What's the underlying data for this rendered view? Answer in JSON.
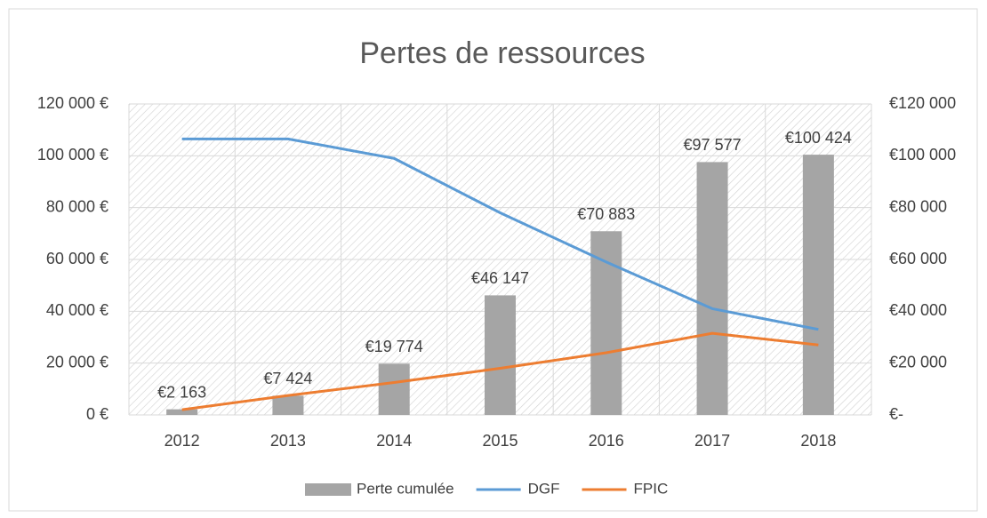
{
  "chart_data": {
    "type": "combo",
    "title": "Pertes de ressources",
    "categories": [
      "2012",
      "2013",
      "2014",
      "2015",
      "2016",
      "2017",
      "2018"
    ],
    "series": [
      {
        "name": "Perte cumulée",
        "type": "bar",
        "axis": "y2",
        "color": "#a5a5a5",
        "values": [
          2163,
          7424,
          19774,
          46147,
          70883,
          97577,
          100424
        ],
        "value_labels": [
          "€2 163",
          "€7 424",
          "€19 774",
          "€46 147",
          "€70 883",
          "€97 577",
          "€100 424"
        ]
      },
      {
        "name": "DGF",
        "type": "line",
        "color": "#5b9bd5",
        "values": [
          106500,
          106500,
          99000,
          78000,
          59000,
          41000,
          33000
        ]
      },
      {
        "name": "FPIC",
        "type": "line",
        "color": "#ed7d31",
        "values": [
          2000,
          7500,
          12500,
          18000,
          24000,
          31500,
          27000
        ]
      }
    ],
    "ylim": [
      0,
      120000
    ],
    "yticks": [
      {
        "value": 0,
        "label": "0 €"
      },
      {
        "value": 20000,
        "label": "20 000 €"
      },
      {
        "value": 40000,
        "label": "40 000 €"
      },
      {
        "value": 60000,
        "label": "60 000 €"
      },
      {
        "value": 80000,
        "label": "80 000 €"
      },
      {
        "value": 100000,
        "label": "100 000 €"
      },
      {
        "value": 120000,
        "label": "120 000 €"
      }
    ],
    "y2lim": [
      0,
      120000
    ],
    "y2ticks": [
      {
        "value": 0,
        "label": "€-"
      },
      {
        "value": 20000,
        "label": "€20 000"
      },
      {
        "value": 40000,
        "label": "€40 000"
      },
      {
        "value": 60000,
        "label": "€60 000"
      },
      {
        "value": 80000,
        "label": "€80 000"
      },
      {
        "value": 100000,
        "label": "€100 000"
      },
      {
        "value": 120000,
        "label": "€120 000"
      }
    ],
    "grid": true,
    "legend": "bottom"
  }
}
